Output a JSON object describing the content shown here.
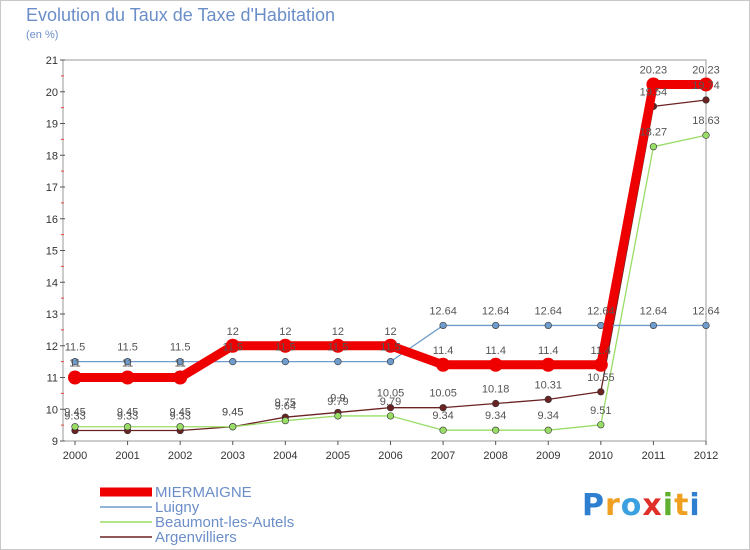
{
  "chart_data": {
    "type": "line",
    "title": "Evolution du Taux de Taxe d'Habitation",
    "subtitle": "(en %)",
    "x": [
      "2000",
      "2001",
      "2002",
      "2003",
      "2004",
      "2005",
      "2006",
      "2007",
      "2008",
      "2009",
      "2010",
      "2011",
      "2012"
    ],
    "ylim": [
      9,
      21
    ],
    "yticks": [
      9,
      10,
      11,
      12,
      13,
      14,
      15,
      16,
      17,
      18,
      19,
      20,
      21
    ],
    "series": [
      {
        "name": "MIERMAIGNE",
        "color": "#ee0000",
        "values": [
          11,
          11,
          11,
          12,
          12,
          12,
          12,
          11.4,
          11.4,
          11.4,
          11.4,
          20.23,
          20.23
        ],
        "labels": [
          "11",
          "11",
          "11",
          "12",
          "12",
          "12",
          "12",
          "11.4",
          "11.4",
          "11.4",
          "11.4",
          "20.23",
          "20.23"
        ]
      },
      {
        "name": "Luigny",
        "color": "#6f9ccc",
        "values": [
          11.5,
          11.5,
          11.5,
          11.5,
          11.5,
          11.5,
          11.5,
          12.64,
          12.64,
          12.64,
          12.64,
          12.64,
          12.64
        ],
        "labels": [
          "11.5",
          "11.5",
          "11.5",
          "11.5",
          "11.5",
          "11.5",
          "11.5",
          "12.64",
          "12.64",
          "12.64",
          "12.64",
          "12.64",
          "12.64"
        ]
      },
      {
        "name": "Beaumont-les-Autels",
        "color": "#99dd66",
        "values": [
          9.45,
          9.45,
          9.45,
          9.45,
          9.64,
          9.79,
          9.79,
          9.34,
          9.34,
          9.34,
          9.51,
          18.27,
          18.63
        ],
        "labels": [
          "9.45",
          "9.45",
          "9.45",
          "9.45",
          "9.64",
          "9.79",
          "9.79",
          "9.34",
          "9.34",
          "9.34",
          "9.51",
          "18.27",
          "18.63"
        ]
      },
      {
        "name": "Argenvilliers",
        "color": "#6b2222",
        "values": [
          9.33,
          9.33,
          9.33,
          9.45,
          9.75,
          9.9,
          10.05,
          10.05,
          10.18,
          10.31,
          10.55,
          19.54,
          19.74
        ],
        "labels": [
          "9.33",
          "9.33",
          "9.33",
          "9.45",
          "9.75",
          "9.9",
          "10.05",
          "10.05",
          "10.18",
          "10.31",
          "10.55",
          "19.54",
          "19.74"
        ]
      }
    ]
  },
  "logo": {
    "letters": [
      "P",
      "r",
      "o",
      "x",
      "i",
      "t",
      "i"
    ],
    "colors": [
      "#2f7fd0",
      "#f0a020",
      "#3aa0e0",
      "#e0302a",
      "#60b030",
      "#f0a020",
      "#2f7fd0"
    ]
  }
}
